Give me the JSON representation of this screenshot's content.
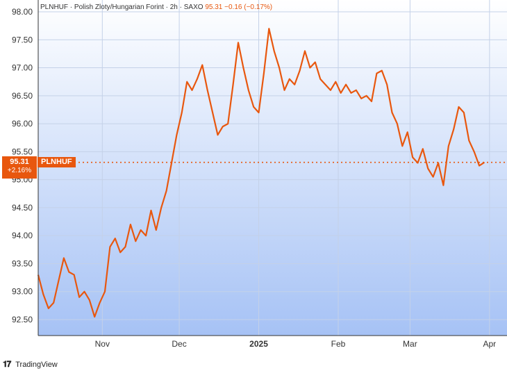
{
  "legend": {
    "symbol": "PLNHUF",
    "name": "Polish Zloty/Hungarian Forint",
    "interval": "2h",
    "source": "SAXO",
    "last": "95.31",
    "change": "−0.16",
    "change_pct": "(−0.17%)"
  },
  "badge": {
    "price": "95.31",
    "change_pct": "+2.16%",
    "symbol": "PLNHUF"
  },
  "footer": {
    "brand": "TradingView",
    "logo_icon": "tradingview-logo-icon"
  },
  "colors": {
    "line": "#e8570e",
    "bg_top": "#ffffff",
    "bg_bottom": "#a6c2f5",
    "grid": "#c7d4ea",
    "axis": "#333333"
  },
  "chart_data": {
    "type": "line",
    "title": "PLNHUF · Polish Zloty/Hungarian Forint · 2h · SAXO",
    "xlabel": "",
    "ylabel": "",
    "ylim": [
      92.3,
      98.05
    ],
    "yticks": [
      "98.00",
      "97.50",
      "97.00",
      "96.50",
      "96.00",
      "95.50",
      "95.00",
      "94.50",
      "94.00",
      "93.50",
      "93.00",
      "92.50"
    ],
    "xticks": [
      {
        "label": "Nov",
        "date": "2024-11-01",
        "bold": false
      },
      {
        "label": "Dec",
        "date": "2024-12-01",
        "bold": false
      },
      {
        "label": "2025",
        "date": "2025-01-01",
        "bold": true
      },
      {
        "label": "Feb",
        "date": "2025-02-01",
        "bold": false
      },
      {
        "label": "Mar",
        "date": "2025-03-01",
        "bold": false
      },
      {
        "label": "Apr",
        "date": "2025-04-01",
        "bold": false
      }
    ],
    "xlim": [
      "2024-10-07",
      "2025-04-07"
    ],
    "current_value": 95.31,
    "grid": true,
    "series": [
      {
        "name": "PLNHUF",
        "points": [
          [
            "2024-10-07",
            93.3
          ],
          [
            "2024-10-09",
            92.95
          ],
          [
            "2024-10-11",
            92.7
          ],
          [
            "2024-10-13",
            92.8
          ],
          [
            "2024-10-15",
            93.2
          ],
          [
            "2024-10-17",
            93.6
          ],
          [
            "2024-10-19",
            93.35
          ],
          [
            "2024-10-21",
            93.3
          ],
          [
            "2024-10-23",
            92.9
          ],
          [
            "2024-10-25",
            93.0
          ],
          [
            "2024-10-27",
            92.85
          ],
          [
            "2024-10-29",
            92.55
          ],
          [
            "2024-10-31",
            92.8
          ],
          [
            "2024-11-02",
            93.0
          ],
          [
            "2024-11-04",
            93.8
          ],
          [
            "2024-11-06",
            93.95
          ],
          [
            "2024-11-08",
            93.7
          ],
          [
            "2024-11-10",
            93.8
          ],
          [
            "2024-11-12",
            94.2
          ],
          [
            "2024-11-14",
            93.9
          ],
          [
            "2024-11-16",
            94.1
          ],
          [
            "2024-11-18",
            94.0
          ],
          [
            "2024-11-20",
            94.45
          ],
          [
            "2024-11-22",
            94.1
          ],
          [
            "2024-11-24",
            94.5
          ],
          [
            "2024-11-26",
            94.8
          ],
          [
            "2024-11-28",
            95.3
          ],
          [
            "2024-11-30",
            95.8
          ],
          [
            "2024-12-02",
            96.2
          ],
          [
            "2024-12-04",
            96.75
          ],
          [
            "2024-12-06",
            96.6
          ],
          [
            "2024-12-08",
            96.8
          ],
          [
            "2024-12-10",
            97.05
          ],
          [
            "2024-12-12",
            96.6
          ],
          [
            "2024-12-14",
            96.2
          ],
          [
            "2024-12-16",
            95.8
          ],
          [
            "2024-12-18",
            95.95
          ],
          [
            "2024-12-20",
            96.0
          ],
          [
            "2024-12-22",
            96.7
          ],
          [
            "2024-12-24",
            97.45
          ],
          [
            "2024-12-26",
            97.0
          ],
          [
            "2024-12-28",
            96.6
          ],
          [
            "2024-12-30",
            96.3
          ],
          [
            "2025-01-01",
            96.2
          ],
          [
            "2025-01-03",
            96.9
          ],
          [
            "2025-01-05",
            97.7
          ],
          [
            "2025-01-07",
            97.3
          ],
          [
            "2025-01-09",
            97.0
          ],
          [
            "2025-01-11",
            96.6
          ],
          [
            "2025-01-13",
            96.8
          ],
          [
            "2025-01-15",
            96.7
          ],
          [
            "2025-01-17",
            96.95
          ],
          [
            "2025-01-19",
            97.3
          ],
          [
            "2025-01-21",
            97.0
          ],
          [
            "2025-01-23",
            97.1
          ],
          [
            "2025-01-25",
            96.8
          ],
          [
            "2025-01-27",
            96.7
          ],
          [
            "2025-01-29",
            96.6
          ],
          [
            "2025-01-31",
            96.75
          ],
          [
            "2025-02-02",
            96.55
          ],
          [
            "2025-02-04",
            96.7
          ],
          [
            "2025-02-06",
            96.55
          ],
          [
            "2025-02-08",
            96.6
          ],
          [
            "2025-02-10",
            96.45
          ],
          [
            "2025-02-12",
            96.5
          ],
          [
            "2025-02-14",
            96.4
          ],
          [
            "2025-02-16",
            96.9
          ],
          [
            "2025-02-18",
            96.95
          ],
          [
            "2025-02-20",
            96.7
          ],
          [
            "2025-02-22",
            96.2
          ],
          [
            "2025-02-24",
            96.0
          ],
          [
            "2025-02-26",
            95.6
          ],
          [
            "2025-02-28",
            95.85
          ],
          [
            "2025-03-02",
            95.4
          ],
          [
            "2025-03-04",
            95.3
          ],
          [
            "2025-03-06",
            95.55
          ],
          [
            "2025-03-08",
            95.2
          ],
          [
            "2025-03-10",
            95.05
          ],
          [
            "2025-03-12",
            95.3
          ],
          [
            "2025-03-14",
            94.9
          ],
          [
            "2025-03-16",
            95.6
          ],
          [
            "2025-03-18",
            95.9
          ],
          [
            "2025-03-20",
            96.3
          ],
          [
            "2025-03-22",
            96.2
          ],
          [
            "2025-03-24",
            95.7
          ],
          [
            "2025-03-26",
            95.5
          ],
          [
            "2025-03-28",
            95.25
          ],
          [
            "2025-03-30",
            95.31
          ]
        ]
      }
    ]
  }
}
